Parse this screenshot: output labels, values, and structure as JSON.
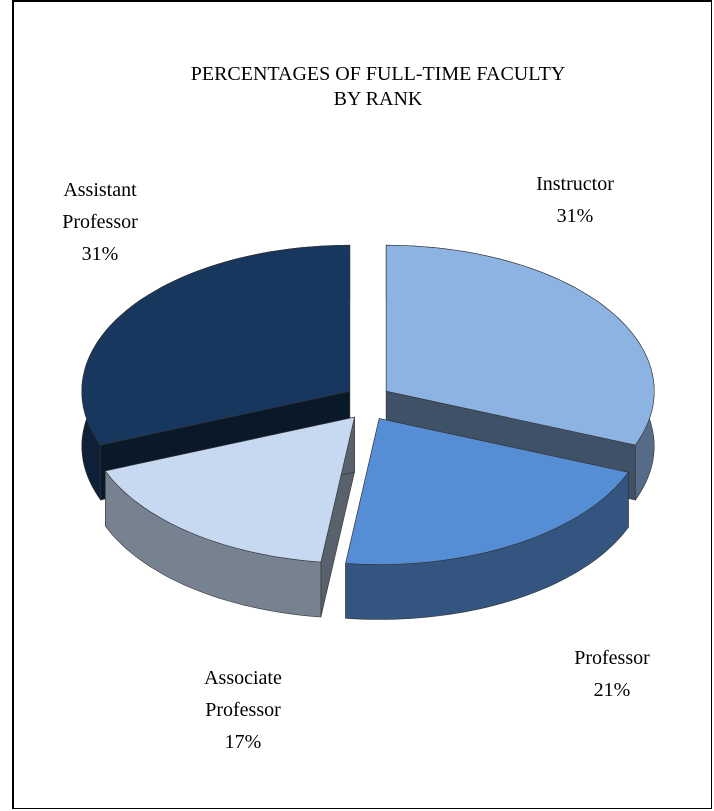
{
  "chart_data": {
    "type": "pie3d",
    "title": "PERCENTAGES OF FULL-TIME FACULTY BY RANK",
    "categories": [
      "Instructor",
      "Professor",
      "Associate Professor",
      "Assistant Professor"
    ],
    "values": [
      31,
      21,
      17,
      31
    ],
    "value_labels": [
      "31%",
      "21%",
      "17%",
      "31%"
    ],
    "colors": [
      "#8db3e2",
      "#558ed5",
      "#c6d9f1",
      "#17375e"
    ]
  }
}
